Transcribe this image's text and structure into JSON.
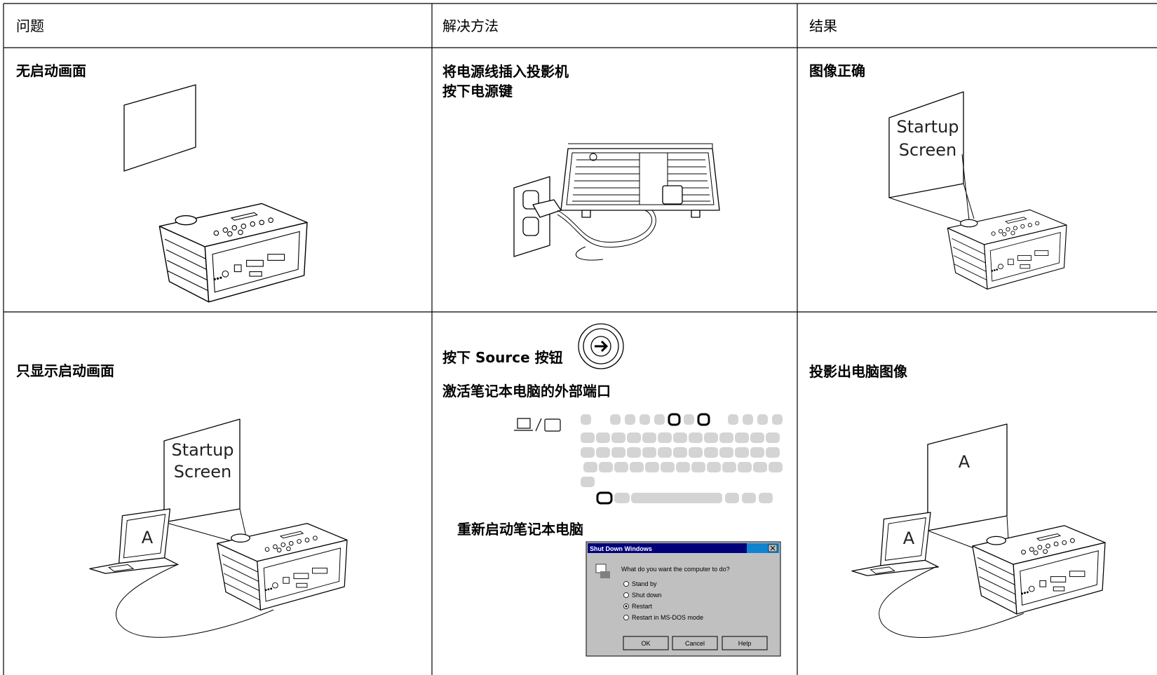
{
  "header": {
    "problem": "问题",
    "solution": "解决方法",
    "result": "结果"
  },
  "rows": [
    {
      "problem": "无启动画面",
      "solution": [
        "将电源线插入投影机",
        "按下电源键"
      ],
      "result": "图像正确",
      "result_screen": [
        "Startup",
        "Screen"
      ]
    },
    {
      "problem": "只显示启动画面",
      "problem_screen": [
        "Startup",
        "Screen"
      ],
      "problem_laptop": "A",
      "solution": [
        "按下 Source 按钮",
        "激活笔记本电脑的外部端口",
        "重新启动笔记本电脑"
      ],
      "result": "投影出电脑图像",
      "result_screen": "A",
      "result_laptop": "A"
    }
  ],
  "dialog": {
    "title": "Shut Down Windows",
    "question": "What do you want the computer to do?",
    "options": [
      "Stand by",
      "Shut down",
      "Restart",
      "Restart in MS-DOS mode"
    ],
    "buttons": [
      "OK",
      "Cancel",
      "Help"
    ]
  }
}
